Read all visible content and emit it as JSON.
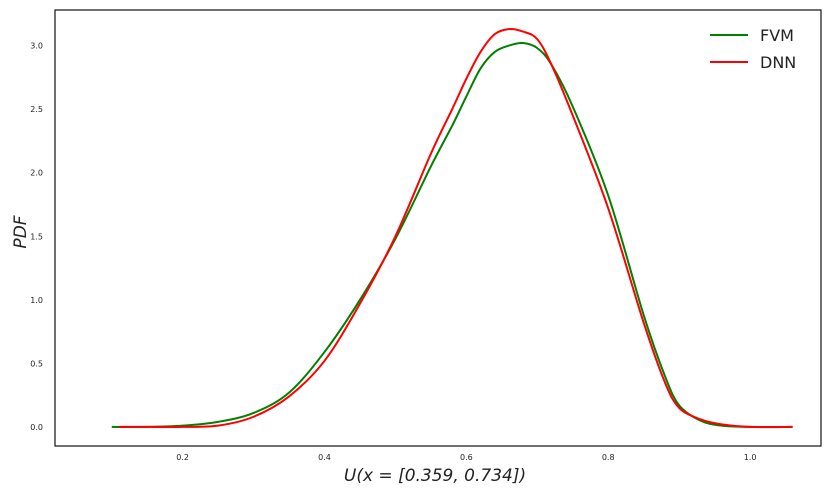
{
  "chart_data": {
    "type": "line",
    "xlabel": "U(x = [0.359, 0.734])",
    "ylabel": "PDF",
    "xlim": [
      0.02,
      1.1
    ],
    "ylim": [
      -0.15,
      3.28
    ],
    "xticks": [
      0.2,
      0.4,
      0.6,
      0.8,
      1.0
    ],
    "yticks": [
      0.0,
      0.5,
      1.0,
      1.5,
      2.0,
      2.5,
      3.0
    ],
    "xtick_labels": [
      "0.2",
      "0.4",
      "0.6",
      "0.8",
      "1.0"
    ],
    "ytick_labels": [
      "0.0",
      "0.5",
      "1.0",
      "1.5",
      "2.0",
      "2.5",
      "3.0"
    ],
    "legend_position": "top-right",
    "grid": false,
    "series": [
      {
        "name": "FVM",
        "color": "#008000",
        "x": [
          0.1,
          0.15,
          0.2,
          0.25,
          0.3,
          0.35,
          0.4,
          0.45,
          0.5,
          0.55,
          0.58,
          0.6,
          0.62,
          0.64,
          0.66,
          0.68,
          0.7,
          0.72,
          0.75,
          0.8,
          0.85,
          0.88,
          0.9,
          0.93,
          0.96,
          1.0,
          1.06
        ],
        "y": [
          0.0,
          0.0,
          0.01,
          0.04,
          0.11,
          0.27,
          0.59,
          1.0,
          1.48,
          2.05,
          2.37,
          2.6,
          2.82,
          2.95,
          3.0,
          3.02,
          2.98,
          2.85,
          2.52,
          1.82,
          0.88,
          0.4,
          0.17,
          0.05,
          0.01,
          0.0,
          0.0
        ]
      },
      {
        "name": "DNN",
        "color": "#ff0000",
        "x": [
          0.11,
          0.15,
          0.2,
          0.25,
          0.3,
          0.35,
          0.4,
          0.45,
          0.5,
          0.55,
          0.58,
          0.6,
          0.62,
          0.64,
          0.66,
          0.68,
          0.7,
          0.72,
          0.75,
          0.8,
          0.85,
          0.88,
          0.9,
          0.93,
          0.96,
          1.0,
          1.06
        ],
        "y": [
          0.0,
          0.0,
          0.0,
          0.01,
          0.08,
          0.24,
          0.52,
          0.97,
          1.5,
          2.15,
          2.5,
          2.74,
          2.95,
          3.09,
          3.13,
          3.11,
          3.05,
          2.85,
          2.45,
          1.72,
          0.82,
          0.35,
          0.15,
          0.06,
          0.02,
          0.0,
          0.0
        ]
      }
    ]
  }
}
